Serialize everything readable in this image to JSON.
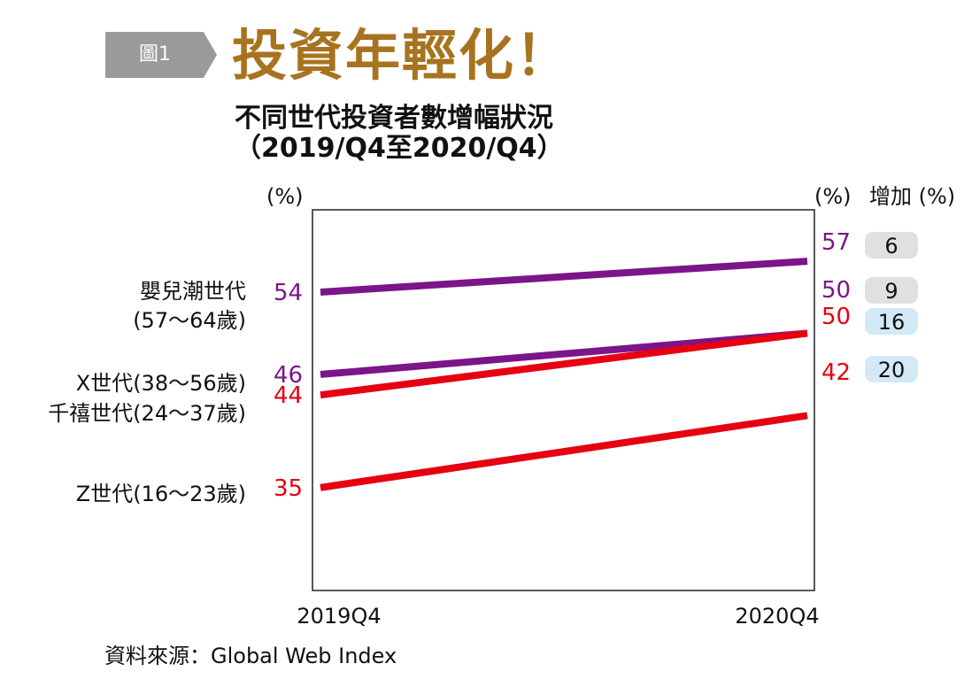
{
  "header": {
    "tag": "圖1",
    "title": "投資年輕化！",
    "subtitle": "不同世代投資者數增幅狀況",
    "subtitle_range": "（2019/Q4至2020/Q4）"
  },
  "axes": {
    "left_unit": "(%)",
    "right_unit": "(%)",
    "increase_header": "增加 (%)"
  },
  "source": "資料來源：Global Web Index",
  "chart_data": {
    "type": "line",
    "x": [
      "2019Q4",
      "2020Q4"
    ],
    "ylim": [
      25,
      62
    ],
    "grid": false,
    "series": [
      {
        "name": "嬰兒潮世代",
        "sublabel": "(57～64歲)",
        "values": [
          54,
          57
        ],
        "increase": 6,
        "color": "#7b1589",
        "badge_color": "#e0e0e0"
      },
      {
        "name": "X世代(38～56歲)",
        "values": [
          46,
          50
        ],
        "increase": 9,
        "color": "#7b1589",
        "badge_color": "#e0e0e0"
      },
      {
        "name": "千禧世代(24～37歲)",
        "values": [
          44,
          50
        ],
        "increase": 16,
        "color": "#e60012",
        "badge_color": "#d3e9f7"
      },
      {
        "name": "Z世代(16～23歲)",
        "values": [
          35,
          42
        ],
        "increase": 20,
        "color": "#e60012",
        "badge_color": "#d3e9f7"
      }
    ]
  }
}
